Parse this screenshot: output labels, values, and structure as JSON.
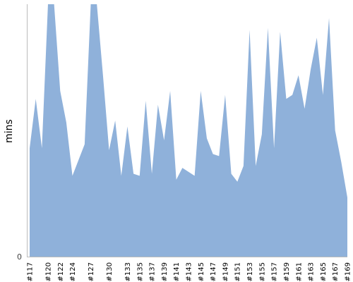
{
  "chart_data": {
    "type": "area",
    "ylabel": "mins",
    "yticks": [
      0
    ],
    "ylim": [
      0,
      64
    ],
    "x": [
      "#117",
      "#118",
      "#119",
      "#120",
      "#121",
      "#122",
      "#123",
      "#124",
      "#125",
      "#126",
      "#127",
      "#128",
      "#129",
      "#130",
      "#131",
      "#132",
      "#133",
      "#134",
      "#135",
      "#136",
      "#137",
      "#138",
      "#139",
      "#140",
      "#141",
      "#142",
      "#143",
      "#144",
      "#145",
      "#146",
      "#147",
      "#148",
      "#149",
      "#150",
      "#151",
      "#152",
      "#153",
      "#154",
      "#155",
      "#156",
      "#157",
      "#158",
      "#159",
      "#160",
      "#161",
      "#162",
      "#163",
      "#164",
      "#165",
      "#166",
      "#167",
      "#168",
      "#169"
    ],
    "xtick_labels": [
      "#117",
      "#120",
      "#122",
      "#124",
      "#127",
      "#130",
      "#133",
      "#135",
      "#137",
      "#139",
      "#141",
      "#143",
      "#145",
      "#147",
      "#149",
      "#151",
      "#153",
      "#155",
      "#157",
      "#159",
      "#161",
      "#163",
      "#165",
      "#167",
      "#169"
    ],
    "values": [
      27.5,
      40,
      27.5,
      90,
      90,
      42,
      34,
      20.5,
      24.5,
      28.5,
      90,
      90,
      46,
      27,
      34.5,
      20.5,
      33,
      21,
      20.5,
      39.5,
      21,
      38.5,
      29.5,
      42,
      19.5,
      22.5,
      21.5,
      20.5,
      42,
      30,
      26,
      25.5,
      41,
      21,
      19,
      23,
      57.5,
      23,
      31,
      58,
      27.5,
      57,
      40,
      41,
      46,
      37.5,
      47.5,
      55.5,
      41,
      60.5,
      32,
      24,
      15
    ],
    "series_color": "#8fb1da",
    "grid": false,
    "legend": "none"
  }
}
